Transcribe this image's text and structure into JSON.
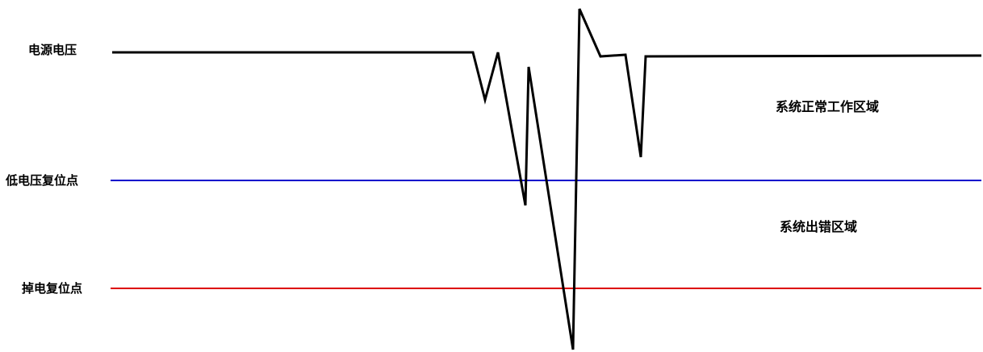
{
  "labels": {
    "supply_voltage": "电源电压",
    "low_voltage_reset": "低电压复位点",
    "power_down_reset": "掉电复位点"
  },
  "zones": {
    "normal": "系统正常工作区域",
    "error": "系统出错区域"
  },
  "colors": {
    "supply_trace": "#000000",
    "low_voltage_reset_line": "#0000cc",
    "power_down_reset_line": "#dd0000"
  }
}
